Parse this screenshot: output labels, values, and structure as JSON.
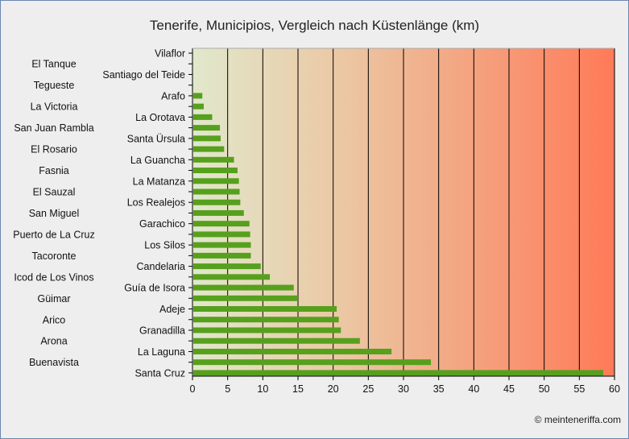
{
  "chart_data": {
    "type": "bar",
    "orientation": "horizontal",
    "title": "Tenerife, Municipios, Vergleich nach Küstenlänge (km)",
    "xlabel": "",
    "ylabel": "",
    "xlim": [
      0,
      60
    ],
    "xticks": [
      0,
      5,
      10,
      15,
      20,
      25,
      30,
      35,
      40,
      45,
      50,
      55,
      60
    ],
    "grid": true,
    "bar_color": "#56a01e",
    "categories": [
      "Vilaflor",
      "El Tanque",
      "Santiago del Teide",
      "Tegueste",
      "Arafo",
      "La Victoria",
      "La Orotava",
      "San Juan Rambla",
      "Santa Ürsula",
      "El Rosario",
      "La Guancha",
      "Fasnia",
      "La Matanza",
      "El Sauzal",
      "Los Realejos",
      "San Miguel",
      "Garachico",
      "Puerto de La Cruz",
      "Los Silos",
      "Tacoronte",
      "Candelaria",
      "Icod de Los Vinos",
      "Guía de Isora",
      "Güimar",
      "Adeje",
      "Arico",
      "Granadilla",
      "Arona",
      "La Laguna",
      "Buenavista",
      "Santa Cruz"
    ],
    "values": [
      0,
      0,
      0,
      0,
      1.4,
      1.6,
      2.8,
      3.9,
      4.0,
      4.5,
      5.9,
      6.4,
      6.6,
      6.7,
      6.8,
      7.3,
      8.1,
      8.2,
      8.3,
      8.3,
      9.7,
      11.0,
      14.4,
      15.0,
      20.5,
      20.8,
      21.1,
      23.8,
      28.3,
      33.9,
      58.4
    ]
  },
  "credit": "© meinteneriffa.com"
}
